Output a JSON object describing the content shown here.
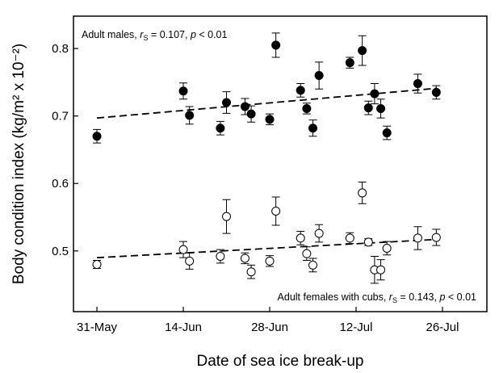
{
  "chart_data": {
    "type": "scatter",
    "x_label": "Date of sea ice break-up",
    "y_label": "Body condition index (kg/m² x 10⁻²)",
    "xlim": [
      -3.8,
      63.2
    ],
    "xticks": [
      {
        "value": 0,
        "label": "31-May"
      },
      {
        "value": 14,
        "label": "14-Jun"
      },
      {
        "value": 28,
        "label": "28-Jun"
      },
      {
        "value": 42,
        "label": "12-Jul"
      },
      {
        "value": 56,
        "label": "26-Jul"
      }
    ],
    "ylim": [
      0.41,
      0.848
    ],
    "yticks": [
      0.5,
      0.6,
      0.7,
      0.8
    ],
    "series": [
      {
        "fill": "#000000",
        "color": "#000000",
        "x": [
          0,
          14,
          15,
          20,
          21,
          24,
          25,
          28,
          29,
          33,
          34,
          35,
          36,
          41,
          43,
          44,
          45,
          46,
          47,
          52,
          55
        ],
        "values": [
          0.67,
          0.737,
          0.701,
          0.682,
          0.72,
          0.714,
          0.703,
          0.695,
          0.805,
          0.738,
          0.711,
          0.682,
          0.76,
          0.779,
          0.797,
          0.712,
          0.733,
          0.711,
          0.675,
          0.748,
          0.735
        ],
        "errors": [
          0.01,
          0.012,
          0.013,
          0.01,
          0.016,
          0.012,
          0.012,
          0.008,
          0.018,
          0.01,
          0.008,
          0.012,
          0.02,
          0.008,
          0.022,
          0.01,
          0.015,
          0.014,
          0.01,
          0.014,
          0.01
        ],
        "trend": {
          "x": [
            0,
            55
          ],
          "values": [
            0.697,
            0.741
          ]
        },
        "annotation": [
          "Adult males, ",
          "r",
          "S",
          " = 0.107, ",
          "p",
          " < 0.01"
        ]
      },
      {
        "fill": "#ffffff",
        "color": "#000000",
        "x": [
          0,
          14,
          15,
          20,
          21,
          24,
          25,
          28,
          29,
          33,
          34,
          35,
          36,
          41,
          43,
          44,
          45,
          46,
          47,
          52,
          55
        ],
        "values": [
          0.48,
          0.502,
          0.485,
          0.492,
          0.551,
          0.489,
          0.469,
          0.485,
          0.559,
          0.519,
          0.496,
          0.479,
          0.526,
          0.519,
          0.586,
          0.513,
          0.472,
          0.472,
          0.504,
          0.519,
          0.52
        ],
        "errors": [
          0.006,
          0.012,
          0.012,
          0.01,
          0.025,
          0.008,
          0.01,
          0.008,
          0.021,
          0.01,
          0.01,
          0.01,
          0.013,
          0.008,
          0.016,
          0.005,
          0.02,
          0.015,
          0.01,
          0.017,
          0.012
        ],
        "trend": {
          "x": [
            0,
            55
          ],
          "values": [
            0.49,
            0.517
          ]
        },
        "annotation": [
          "Adult females with cubs, ",
          "r",
          "S",
          " = 0.143, ",
          "p",
          " < 0.01"
        ]
      }
    ]
  }
}
